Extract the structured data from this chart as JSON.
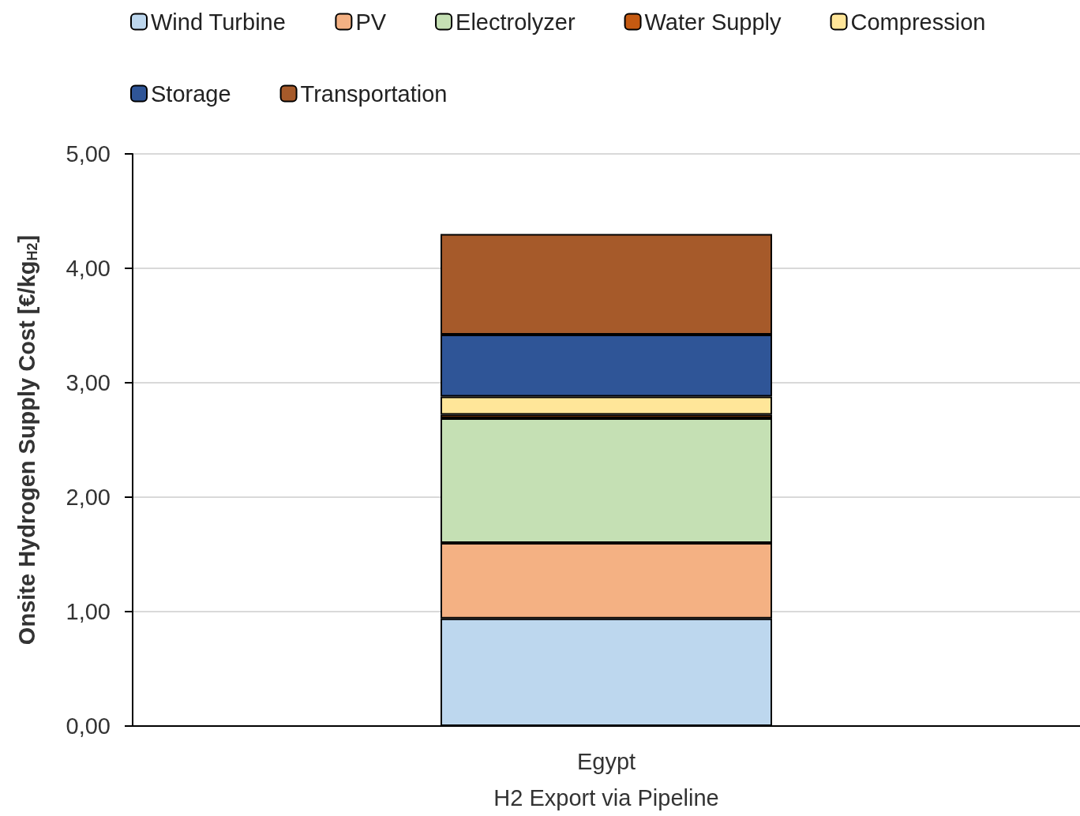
{
  "chart_data": {
    "type": "bar",
    "stacked": true,
    "ylabel": "Onsite Hydrogen Supply Cost [€/kg$_{H2}$]",
    "categories": [
      "Egypt\nH2 Export via Pipeline"
    ],
    "series": [
      {
        "name": "Wind Turbine",
        "color": "#bdd7ee",
        "values": [
          0.94
        ]
      },
      {
        "name": "PV",
        "color": "#f4b183",
        "values": [
          0.66
        ]
      },
      {
        "name": "Electrolyzer",
        "color": "#c5e0b4",
        "values": [
          1.09
        ]
      },
      {
        "name": "Water Supply",
        "color": "#c55a11",
        "values": [
          0.03
        ]
      },
      {
        "name": "Compression",
        "color": "#ffe699",
        "values": [
          0.16
        ]
      },
      {
        "name": "Storage",
        "color": "#2f5597",
        "values": [
          0.54
        ]
      },
      {
        "name": "Transportation",
        "color": "#a65a2a",
        "values": [
          0.88
        ]
      }
    ],
    "ylim": [
      0,
      5
    ],
    "yticks": [
      {
        "value": 0,
        "label": "0,00"
      },
      {
        "value": 1,
        "label": "1,00"
      },
      {
        "value": 2,
        "label": "2,00"
      },
      {
        "value": 3,
        "label": "3,00"
      },
      {
        "value": 4,
        "label": "4,00"
      },
      {
        "value": 5,
        "label": "5,00"
      }
    ],
    "grid": "y",
    "legend": "top"
  }
}
